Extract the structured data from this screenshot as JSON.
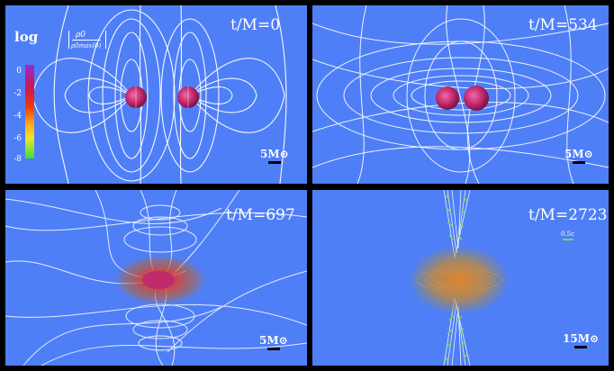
{
  "panels": [
    {
      "time_label": "t/M=0",
      "scale_label": "5M⊙"
    },
    {
      "time_label": "t/M=534",
      "scale_label": "5M⊙"
    },
    {
      "time_label": "t/M=697",
      "scale_label": "5M⊙"
    },
    {
      "time_label": "t/M=2723",
      "scale_label": "15M⊙",
      "velocity_label": "0.5c"
    }
  ],
  "colorbar": {
    "log_label": "log",
    "numerator": "ρ0",
    "denominator": "ρ0max(0)",
    "ticks": [
      "0",
      "-2",
      "-4",
      "-6",
      "-8"
    ],
    "colors": [
      "#9a29d4",
      "#d0174a",
      "#ee3a08",
      "#f7a31c",
      "#f2e52a",
      "#35e23c"
    ]
  },
  "colors": {
    "background": "#4f7ff7",
    "field_lines": "#ffffff",
    "star": "#c0286a",
    "disk": "#e38a2a",
    "jet_arrows": "#7ed44a"
  }
}
